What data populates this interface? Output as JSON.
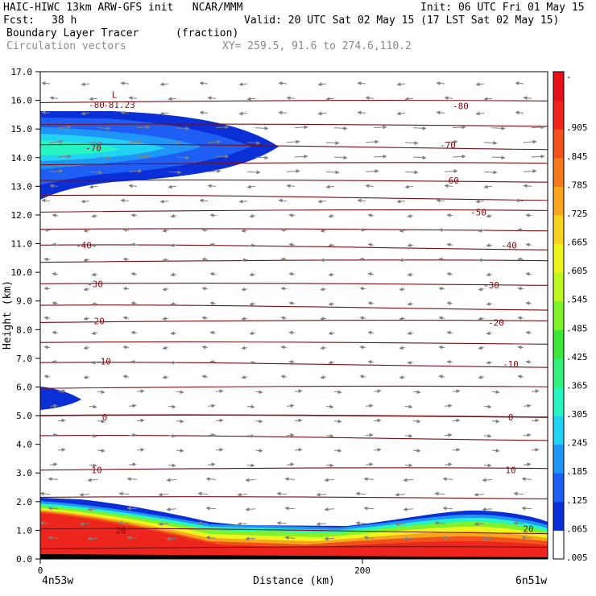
{
  "header": {
    "title": "HAIC-HIWC 13km ARW-GFS init   NCAR/MMM",
    "init": "Init: 06 UTC Fri 01 May 15",
    "fcst_label": "Fcst:",
    "fcst_value": "38 h",
    "valid": "Valid: 20 UTC Sat 02 May 15 (17 LST Sat 02 May 15)",
    "field_name": "Boundary Layer Tracer",
    "field_units": "(fraction)",
    "overlay_name": "Circulation vectors",
    "xy": "XY= 259.5, 91.6 to 274.6,110.2"
  },
  "chart_data": {
    "type": "heatmap",
    "ylabel": "Height (km)",
    "xlabel": "Distance (km)",
    "x_left_label": "4n53w",
    "x_right_label": "6n51w",
    "xlim": [
      0,
      315
    ],
    "ylim": [
      0,
      17
    ],
    "x_ticks": [
      0,
      200
    ],
    "y_ticks": [
      "0.0",
      "1.0",
      "2.0",
      "3.0",
      "4.0",
      "5.0",
      "6.0",
      "7.0",
      "8.0",
      "9.0",
      "10.0",
      "11.0",
      "12.0",
      "13.0",
      "14.0",
      "15.0",
      "16.0",
      "17.0"
    ],
    "colorbar": {
      "labels": [
        ".005",
        ".065",
        ".125",
        ".185",
        ".245",
        ".305",
        ".365",
        ".425",
        ".485",
        ".545",
        ".605",
        ".665",
        ".725",
        ".785",
        ".845",
        ".905",
        "-"
      ],
      "colors": [
        "#ffffff",
        "#0a2fd6",
        "#1e5ef5",
        "#1f95f7",
        "#22d2f2",
        "#27f5c1",
        "#31f07d",
        "#3ee639",
        "#7ff22a",
        "#bdf521",
        "#eef51e",
        "#f7d21e",
        "#f7a61e",
        "#f5791c",
        "#f2511c",
        "#ed251c",
        "#e6101a"
      ]
    },
    "temperature_labels": [
      {
        "text": "L",
        "x": 46,
        "y": 16.2
      },
      {
        "text": "-81.23",
        "x": 49,
        "y": 15.85
      },
      {
        "text": "-80",
        "x": 35,
        "y": 15.85
      },
      {
        "text": "-80",
        "x": 261,
        "y": 15.8
      },
      {
        "text": "-70",
        "x": 33,
        "y": 14.35
      },
      {
        "text": "-70",
        "x": 253,
        "y": 14.45
      },
      {
        "text": "-60",
        "x": 255,
        "y": 13.2
      },
      {
        "text": "-50",
        "x": 272,
        "y": 12.1
      },
      {
        "text": "-40",
        "x": 27,
        "y": 10.95
      },
      {
        "text": "-40",
        "x": 291,
        "y": 10.95
      },
      {
        "text": "-30",
        "x": 34,
        "y": 9.6
      },
      {
        "text": "-30",
        "x": 280,
        "y": 9.55
      },
      {
        "text": "-20",
        "x": 35,
        "y": 8.3
      },
      {
        "text": "-20",
        "x": 283,
        "y": 8.25
      },
      {
        "text": "-10",
        "x": 39,
        "y": 6.9
      },
      {
        "text": "-10",
        "x": 292,
        "y": 6.8
      },
      {
        "text": "0",
        "x": 40,
        "y": 4.95
      },
      {
        "text": "0",
        "x": 292,
        "y": 4.95
      },
      {
        "text": "10",
        "x": 35,
        "y": 3.1
      },
      {
        "text": "10",
        "x": 292,
        "y": 3.1
      },
      {
        "text": "20",
        "x": 50,
        "y": 1.0
      },
      {
        "text": "20",
        "x": 303,
        "y": 1.05
      }
    ]
  }
}
